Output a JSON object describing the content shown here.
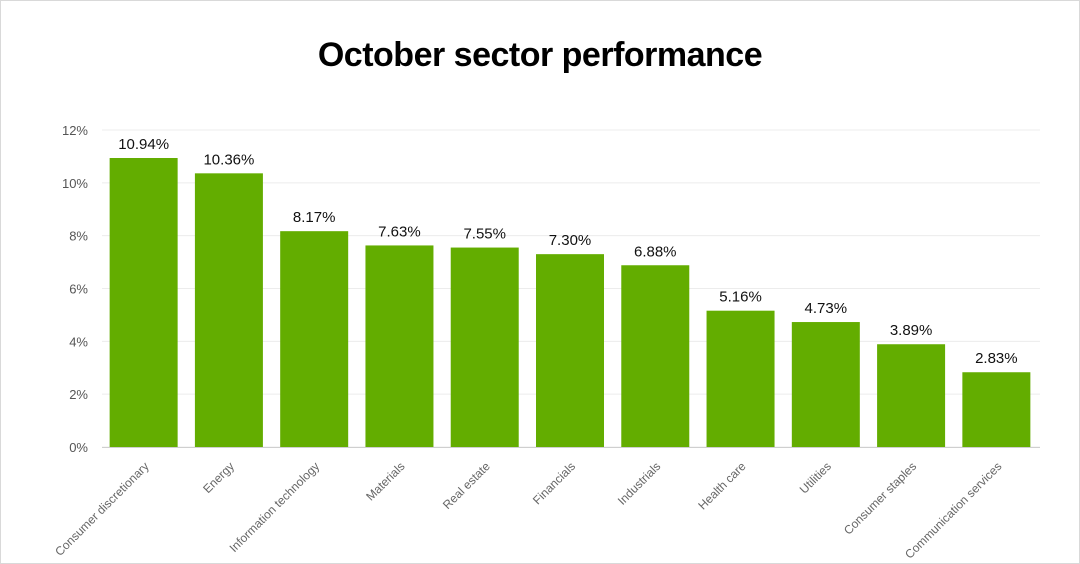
{
  "chart_data": {
    "type": "bar",
    "title": "October sector performance",
    "categories": [
      "Consumer discretionary",
      "Energy",
      "Information technology",
      "Materials",
      "Real estate",
      "Financials",
      "Industrials",
      "Health care",
      "Utilities",
      "Consumer staples",
      "Communication services"
    ],
    "values": [
      10.94,
      10.36,
      8.17,
      7.63,
      7.55,
      7.3,
      6.88,
      5.16,
      4.73,
      3.89,
      2.83
    ],
    "data_labels": [
      "10.94%",
      "10.36%",
      "8.17%",
      "7.63%",
      "7.55%",
      "7.30%",
      "6.88%",
      "5.16%",
      "4.73%",
      "3.89%",
      "2.83%"
    ],
    "yticks": [
      0,
      2,
      4,
      6,
      8,
      10,
      12
    ],
    "ytick_labels": [
      "0%",
      "2%",
      "4%",
      "6%",
      "8%",
      "10%",
      "12%"
    ],
    "ylim": [
      0,
      12
    ],
    "xlabel": "",
    "ylabel": "",
    "grid": true,
    "legend": "none",
    "bar_color": "#63ad00"
  }
}
